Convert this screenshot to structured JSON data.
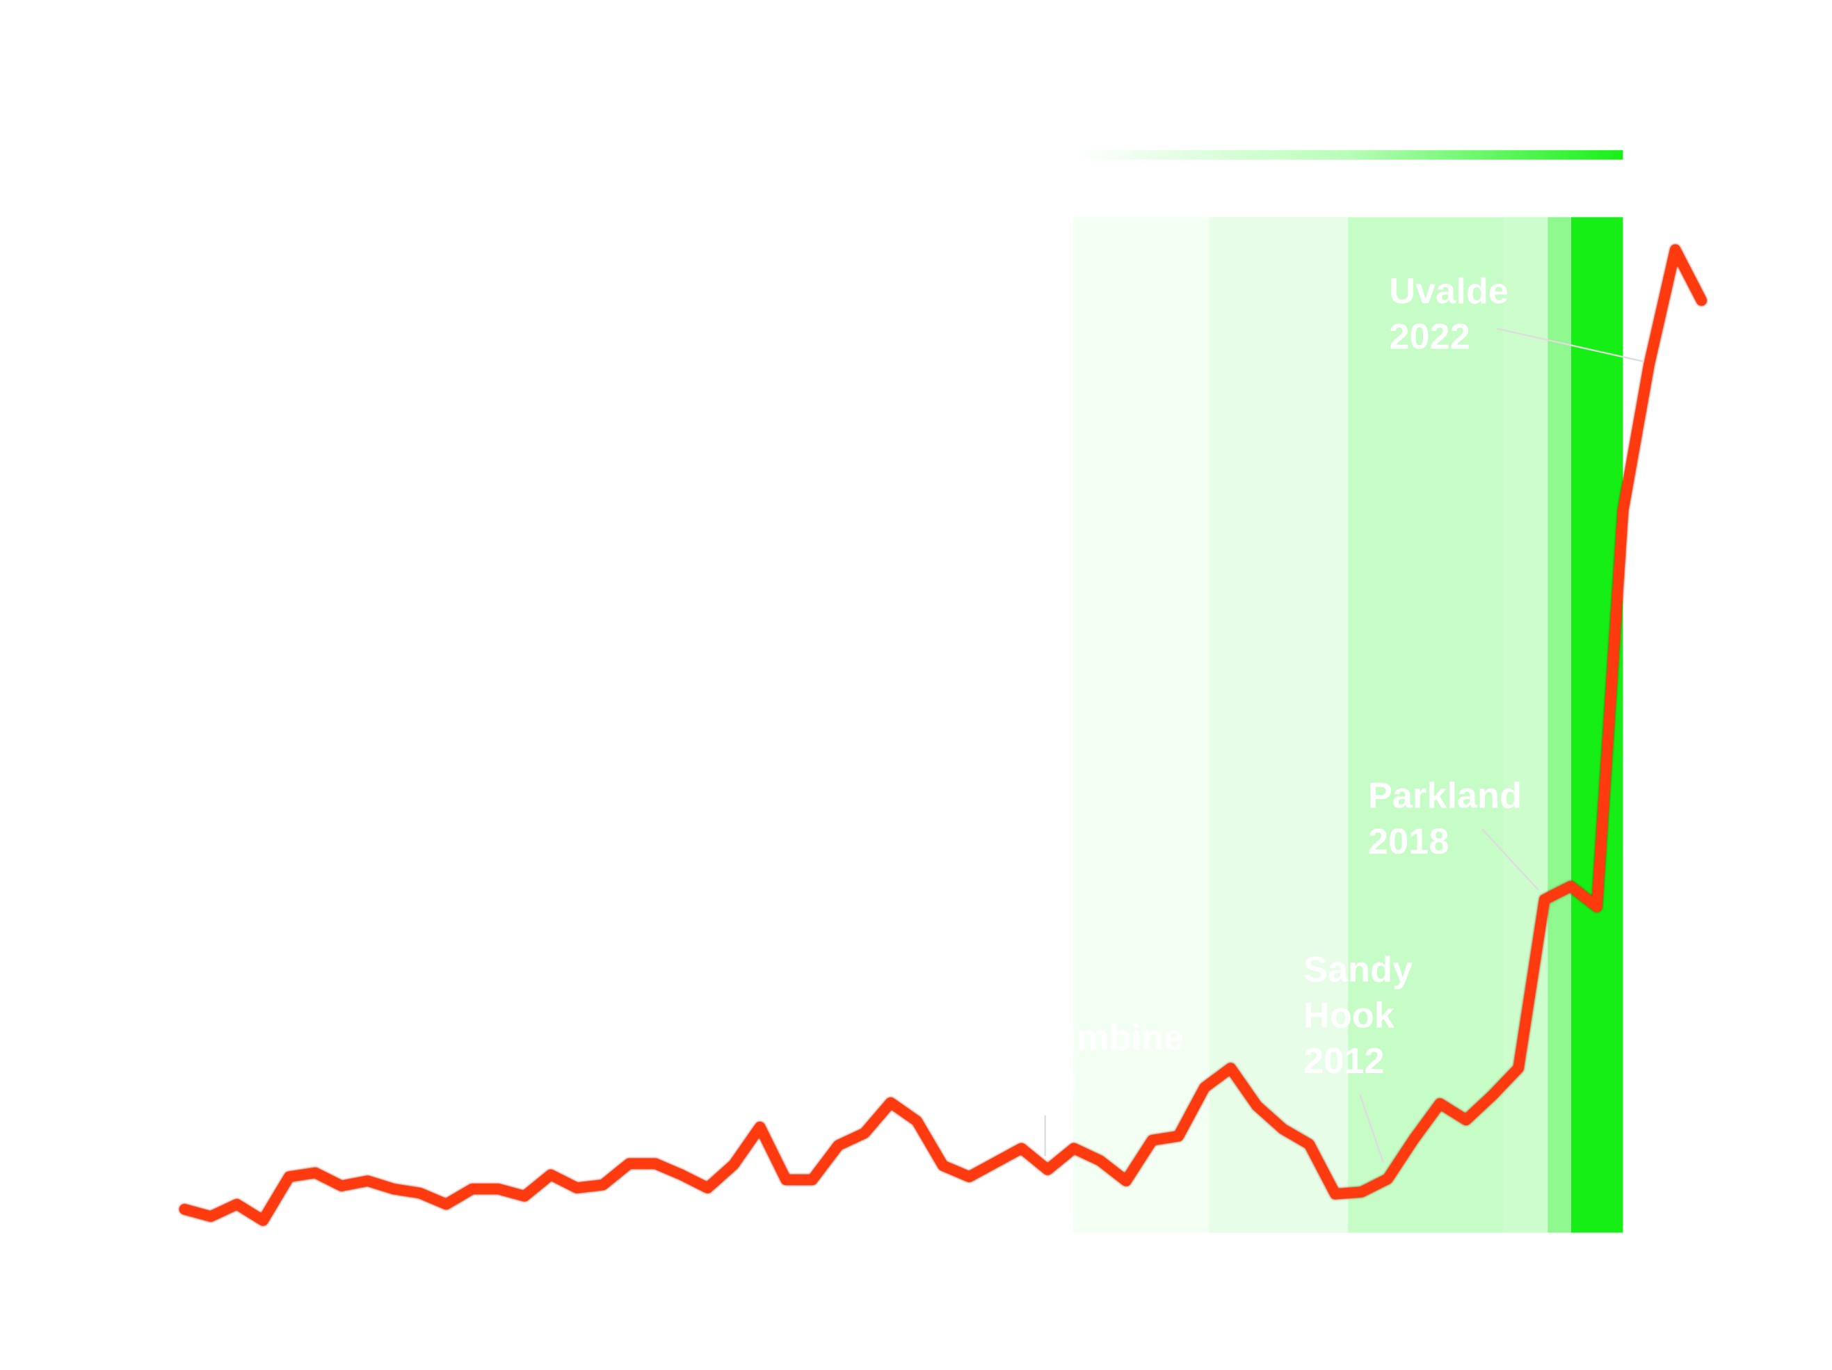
{
  "chart_data": {
    "type": "line",
    "categories": [
      null,
      null,
      null,
      null,
      null,
      null,
      null,
      null,
      null,
      null,
      null,
      null,
      null,
      null,
      null,
      null,
      null,
      null,
      null,
      null,
      null,
      null,
      null,
      null,
      null,
      null,
      null,
      null,
      null,
      null,
      null,
      null,
      null,
      null,
      null,
      null,
      null,
      null,
      null,
      null,
      null,
      null,
      null,
      null,
      null,
      null,
      null,
      null,
      null,
      null,
      null,
      null,
      null,
      null,
      null,
      null,
      null,
      null,
      null
    ],
    "series": [
      {
        "color": "#ff3a0e",
        "values": [
          2.3,
          1.6,
          2.8,
          1.2,
          5.5,
          5.9,
          4.6,
          5.1,
          4.3,
          3.9,
          2.8,
          4.3,
          4.3,
          3.6,
          5.7,
          4.4,
          4.7,
          6.8,
          6.8,
          5.7,
          4.4,
          6.7,
          10.4,
          5.2,
          5.2,
          8.6,
          9.8,
          12.8,
          11.0,
          6.6,
          5.5,
          6.9,
          8.3,
          6.2,
          8.3,
          7.1,
          5.1,
          9.1,
          9.5,
          14.3,
          16.2,
          12.5,
          10.2,
          8.7,
          3.8,
          4.0,
          5.3,
          9.2,
          12.7,
          11.1,
          13.5,
          16.2,
          32.8,
          34.1,
          32.1,
          71.1,
          85.5,
          96.8,
          91.8
        ]
      }
    ],
    "ylim": [
      0,
      100
    ],
    "annotations": [
      {
        "lines": [
          "Columbine",
          "1999"
        ]
      },
      {
        "lines": [
          "Sandy",
          "Hook",
          "2012"
        ]
      },
      {
        "lines": [
          "Parkland",
          "2018"
        ]
      },
      {
        "lines": [
          "Uvalde",
          "2022"
        ]
      }
    ]
  }
}
